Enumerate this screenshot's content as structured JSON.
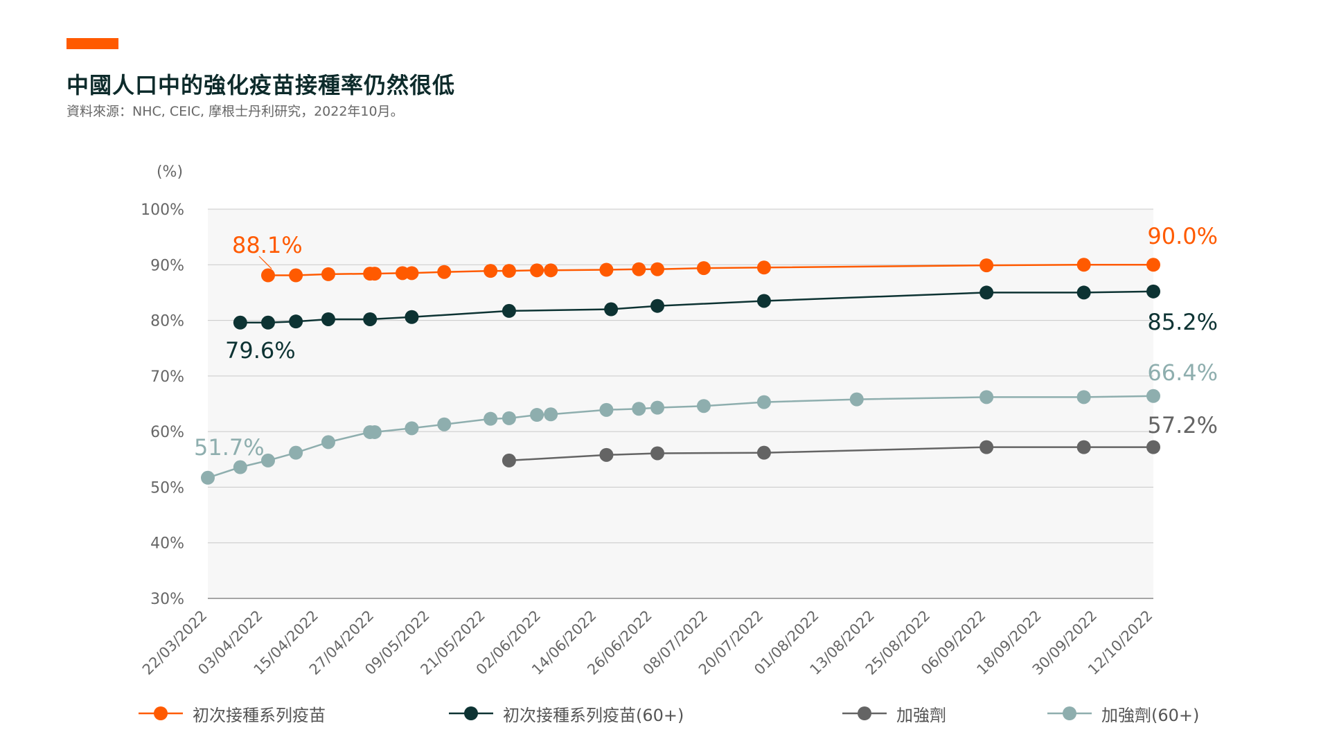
{
  "header": {
    "title": "中國人口中的強化疫苗接種率仍然很低",
    "subtitle": "資料來源：NHC, CEIC, 摩根士丹利研究，2022年10月。"
  },
  "colors": {
    "accent": "#FF5A00",
    "primary": "#FF5A00",
    "primary60": "#0D3333",
    "booster": "#646464",
    "booster60": "#8EAEAE",
    "plot_bg": "#F7F7F7",
    "grid": "#C8C8C8"
  },
  "chart_data": {
    "type": "line",
    "ylabel": "(%)",
    "ylim": [
      30,
      100
    ],
    "yticks": [
      30,
      40,
      50,
      60,
      70,
      80,
      90,
      100
    ],
    "ytick_labels": [
      "30%",
      "40%",
      "50%",
      "60%",
      "70%",
      "80%",
      "90%",
      "100%"
    ],
    "xlim": [
      "2022-03-22",
      "2022-10-12"
    ],
    "xtick_labels": [
      "22/03/2022",
      "03/04/2022",
      "15/04/2022",
      "27/04/2022",
      "09/05/2022",
      "21/05/2022",
      "02/06/2022",
      "14/06/2022",
      "26/06/2022",
      "08/07/2022",
      "20/07/2022",
      "01/08/2022",
      "13/08/2022",
      "25/08/2022",
      "06/09/2022",
      "18/09/2022",
      "30/09/2022",
      "12/10/2022"
    ],
    "xtick_dates": [
      "2022-03-22",
      "2022-04-03",
      "2022-04-15",
      "2022-04-27",
      "2022-05-09",
      "2022-05-21",
      "2022-06-02",
      "2022-06-14",
      "2022-06-26",
      "2022-07-08",
      "2022-07-20",
      "2022-08-01",
      "2022-08-13",
      "2022-08-25",
      "2022-09-06",
      "2022-09-18",
      "2022-09-30",
      "2022-10-12"
    ],
    "grid": true,
    "legend_position": "bottom",
    "series": [
      {
        "key": "primary",
        "name": "初次接種系列疫苗",
        "points": [
          {
            "x": "2022-04-04",
            "y": 88.1
          },
          {
            "x": "2022-04-10",
            "y": 88.1
          },
          {
            "x": "2022-04-17",
            "y": 88.3
          },
          {
            "x": "2022-04-26",
            "y": 88.4
          },
          {
            "x": "2022-04-27",
            "y": 88.4
          },
          {
            "x": "2022-05-03",
            "y": 88.5
          },
          {
            "x": "2022-05-05",
            "y": 88.5
          },
          {
            "x": "2022-05-12",
            "y": 88.7
          },
          {
            "x": "2022-05-22",
            "y": 88.9
          },
          {
            "x": "2022-05-26",
            "y": 88.9
          },
          {
            "x": "2022-06-01",
            "y": 89.0
          },
          {
            "x": "2022-06-04",
            "y": 89.0
          },
          {
            "x": "2022-06-16",
            "y": 89.1
          },
          {
            "x": "2022-06-23",
            "y": 89.2
          },
          {
            "x": "2022-06-27",
            "y": 89.2
          },
          {
            "x": "2022-07-07",
            "y": 89.4
          },
          {
            "x": "2022-07-20",
            "y": 89.5
          },
          {
            "x": "2022-09-06",
            "y": 89.9
          },
          {
            "x": "2022-09-27",
            "y": 90.0
          },
          {
            "x": "2022-10-12",
            "y": 90.0
          }
        ],
        "start_label": "88.1%",
        "end_label": "90.0%"
      },
      {
        "key": "primary60",
        "name": "初次接種系列疫苗(60+)",
        "points": [
          {
            "x": "2022-03-29",
            "y": 79.6
          },
          {
            "x": "2022-04-04",
            "y": 79.6
          },
          {
            "x": "2022-04-10",
            "y": 79.8
          },
          {
            "x": "2022-04-17",
            "y": 80.2
          },
          {
            "x": "2022-04-26",
            "y": 80.2
          },
          {
            "x": "2022-05-05",
            "y": 80.6
          },
          {
            "x": "2022-05-26",
            "y": 81.7
          },
          {
            "x": "2022-06-17",
            "y": 82.0
          },
          {
            "x": "2022-06-27",
            "y": 82.6
          },
          {
            "x": "2022-07-20",
            "y": 83.5
          },
          {
            "x": "2022-09-06",
            "y": 85.0
          },
          {
            "x": "2022-09-27",
            "y": 85.0
          },
          {
            "x": "2022-10-12",
            "y": 85.2
          }
        ],
        "start_label": "79.6%",
        "end_label": "85.2%"
      },
      {
        "key": "booster",
        "name": "加強劑",
        "points": [
          {
            "x": "2022-05-26",
            "y": 54.8
          },
          {
            "x": "2022-06-16",
            "y": 55.8
          },
          {
            "x": "2022-06-27",
            "y": 56.1
          },
          {
            "x": "2022-07-20",
            "y": 56.2
          },
          {
            "x": "2022-09-06",
            "y": 57.2
          },
          {
            "x": "2022-09-27",
            "y": 57.2
          },
          {
            "x": "2022-10-12",
            "y": 57.2
          }
        ],
        "end_label": "57.2%"
      },
      {
        "key": "booster60",
        "name": "加強劑(60+)",
        "points": [
          {
            "x": "2022-03-22",
            "y": 51.7
          },
          {
            "x": "2022-03-29",
            "y": 53.6
          },
          {
            "x": "2022-04-04",
            "y": 54.8
          },
          {
            "x": "2022-04-10",
            "y": 56.2
          },
          {
            "x": "2022-04-17",
            "y": 58.1
          },
          {
            "x": "2022-04-26",
            "y": 59.9
          },
          {
            "x": "2022-04-27",
            "y": 59.9
          },
          {
            "x": "2022-05-05",
            "y": 60.6
          },
          {
            "x": "2022-05-12",
            "y": 61.3
          },
          {
            "x": "2022-05-22",
            "y": 62.3
          },
          {
            "x": "2022-05-26",
            "y": 62.4
          },
          {
            "x": "2022-06-01",
            "y": 63.0
          },
          {
            "x": "2022-06-04",
            "y": 63.1
          },
          {
            "x": "2022-06-16",
            "y": 63.9
          },
          {
            "x": "2022-06-23",
            "y": 64.1
          },
          {
            "x": "2022-06-27",
            "y": 64.3
          },
          {
            "x": "2022-07-07",
            "y": 64.6
          },
          {
            "x": "2022-07-20",
            "y": 65.3
          },
          {
            "x": "2022-08-09",
            "y": 65.8
          },
          {
            "x": "2022-09-06",
            "y": 66.2
          },
          {
            "x": "2022-09-27",
            "y": 66.2
          },
          {
            "x": "2022-10-12",
            "y": 66.4
          }
        ],
        "start_label": "51.7%",
        "end_label": "66.4%"
      }
    ]
  }
}
